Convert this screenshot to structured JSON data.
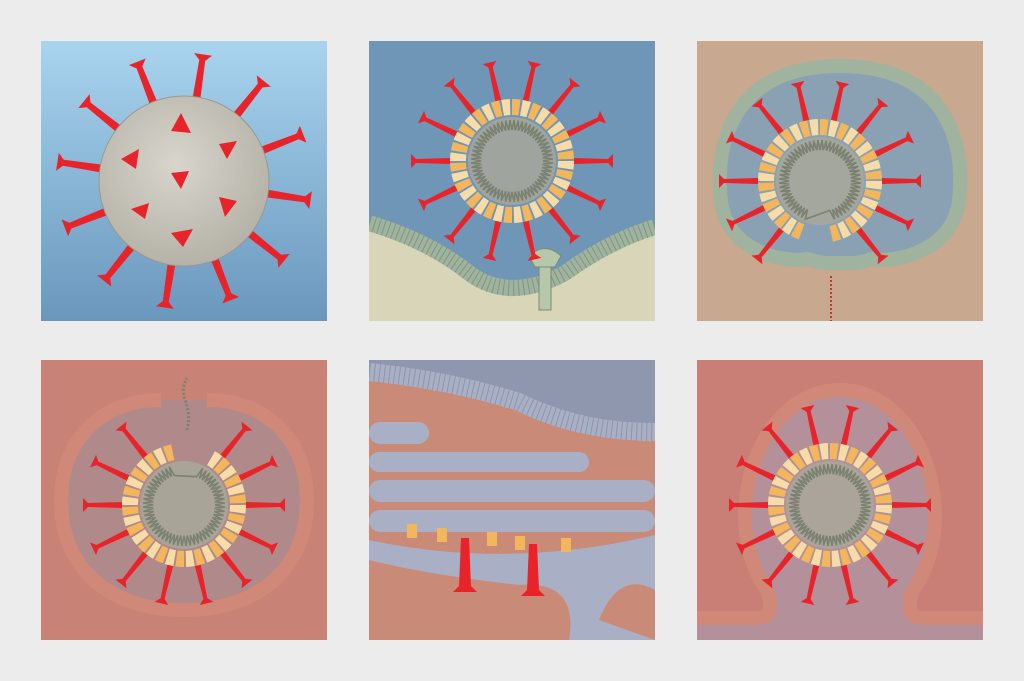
{
  "panels": [
    {
      "step": 1,
      "stage": "virion",
      "background": "#a9d0e8"
    },
    {
      "step": 2,
      "stage": "receptor-binding",
      "background": "#6f96b6"
    },
    {
      "step": 3,
      "stage": "membrane-fusion",
      "background": "#c8a88e"
    },
    {
      "step": 4,
      "stage": "uncoating",
      "background": "#c98276"
    },
    {
      "step": 5,
      "stage": "protein-synthesis",
      "background": "#c98a78"
    },
    {
      "step": 6,
      "stage": "budding",
      "background": "#c97f75"
    }
  ],
  "colors": {
    "spike": "#e8232a",
    "capsid": "#f4b65c",
    "capsid_light": "#f8dca8",
    "core": "#a8a89a",
    "rna": "#7b8170",
    "membrane": "#9fb39e",
    "er_membrane": "#a9b0c6"
  },
  "icons": [
    "spike-protein",
    "capsid",
    "rna-strand",
    "cell-membrane",
    "receptor"
  ]
}
